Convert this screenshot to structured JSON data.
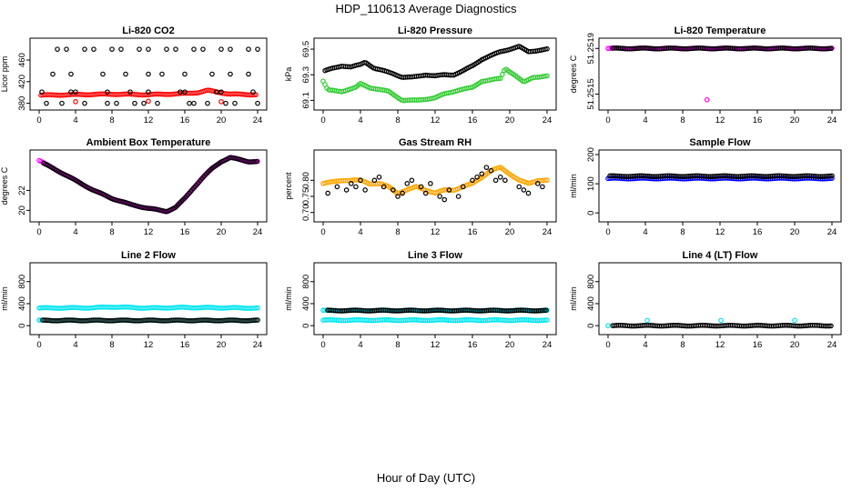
{
  "figure": {
    "title": "HDP_110613  Average Diagnostics",
    "xlabel": "Hour of Day (UTC)"
  },
  "colors": {
    "black": "#000000",
    "red": "#ff0000",
    "green": "#33cc33",
    "magenta": "#ff00ff",
    "orange": "#ffa500",
    "blue": "#0000ff",
    "cyan": "#00e5ee"
  },
  "chart_data": [
    {
      "type": "scatter",
      "title": "Li-820 CO2",
      "ylabel": "Licor ppm",
      "xlim": [
        0,
        24
      ],
      "ylim": [
        376,
        492
      ],
      "xticks": [
        "0",
        "4",
        "8",
        "12",
        "16",
        "20",
        "24"
      ],
      "yticks": [
        {
          "v": 380,
          "label": "380"
        },
        {
          "v": 420,
          "label": "420"
        },
        {
          "v": 460,
          "label": "460"
        }
      ],
      "series": [
        {
          "color": "red",
          "mode": "dense",
          "x": [
            0.2,
            4,
            8,
            12,
            16,
            17.5,
            18.5,
            19.5,
            21,
            23.8
          ],
          "y": [
            395,
            396,
            397,
            396,
            398,
            400,
            404,
            401,
            397,
            396
          ]
        },
        {
          "color": "red",
          "mode": "points",
          "x": [
            4,
            12,
            20
          ],
          "y": [
            383,
            384,
            383
          ]
        },
        {
          "color": "black",
          "mode": "points",
          "x": [
            2,
            3,
            5,
            6,
            8,
            9,
            11,
            12,
            14,
            15,
            17,
            18,
            20,
            21,
            23,
            24,
            1.5,
            3.5,
            7,
            9.5,
            12,
            13.5,
            16,
            19,
            21,
            23,
            0.3,
            3.5,
            4,
            7.5,
            10,
            12,
            15.5,
            16,
            19.5,
            20,
            23.5,
            0.8,
            2.5,
            5,
            7.5,
            8.5,
            10.5,
            11.5,
            13,
            16.5,
            17,
            18.5,
            20.5,
            21.5,
            24
          ],
          "y": [
            480,
            480,
            480,
            480,
            480,
            480,
            480,
            480,
            480,
            480,
            480,
            480,
            480,
            480,
            480,
            480,
            434,
            434,
            434,
            434,
            434,
            434,
            434,
            434,
            434,
            434,
            401,
            401,
            401,
            401,
            401,
            401,
            401,
            401,
            401,
            401,
            401,
            380,
            380,
            380,
            380,
            380,
            380,
            380,
            380,
            380,
            380,
            380,
            380,
            380,
            380
          ]
        }
      ]
    },
    {
      "type": "scatter",
      "title": "Li-820 Pressure",
      "ylabel": "kPa",
      "xlim": [
        0,
        24
      ],
      "ylim": [
        69.06,
        69.55
      ],
      "xticks": [
        "0",
        "4",
        "8",
        "12",
        "16",
        "20",
        "24"
      ],
      "yticks": [
        {
          "v": 69.1,
          "label": "69.1"
        },
        {
          "v": 69.3,
          "label": "69.3"
        },
        {
          "v": 69.5,
          "label": "69.5"
        }
      ],
      "series": [
        {
          "color": "green",
          "mode": "dense",
          "x": [
            0,
            0.5,
            2,
            3.5,
            4,
            5,
            7,
            8.5,
            10,
            12,
            13,
            14.5,
            16,
            17,
            19,
            19.5,
            20.5,
            21.5,
            22.5,
            24
          ],
          "y": [
            69.25,
            69.18,
            69.17,
            69.2,
            69.23,
            69.2,
            69.17,
            69.1,
            69.1,
            69.12,
            69.15,
            69.18,
            69.2,
            69.25,
            69.27,
            69.35,
            69.3,
            69.24,
            69.28,
            69.29
          ]
        },
        {
          "color": "black",
          "mode": "dense",
          "x": [
            0.2,
            1,
            2,
            3,
            4,
            4.5,
            5.5,
            6.5,
            7.5,
            8.5,
            9.5,
            11,
            12,
            13,
            14,
            15,
            16,
            17,
            18,
            19,
            20,
            21,
            22,
            23,
            24
          ],
          "y": [
            69.33,
            69.35,
            69.37,
            69.36,
            69.38,
            69.4,
            69.35,
            69.33,
            69.31,
            69.28,
            69.28,
            69.3,
            69.29,
            69.3,
            69.3,
            69.33,
            69.37,
            69.42,
            69.45,
            69.48,
            69.5,
            69.52,
            69.48,
            69.49,
            69.5
          ]
        }
      ]
    },
    {
      "type": "scatter",
      "title": "Li-820 Temperature",
      "ylabel": "degrees C",
      "xlim": [
        0,
        24
      ],
      "ylim": [
        51.2514,
        51.25195
      ],
      "xticks": [
        "0",
        "4",
        "8",
        "12",
        "16",
        "20",
        "24"
      ],
      "yticks": [
        {
          "v": 51.2515,
          "label": "51.2515"
        },
        {
          "v": 51.2519,
          "label": "51.2519"
        }
      ],
      "series": [
        {
          "color": "magenta",
          "mode": "dense",
          "x": [
            0,
            24
          ],
          "y": [
            51.2519,
            51.2519
          ]
        },
        {
          "color": "black",
          "mode": "dense",
          "x": [
            0.5,
            24
          ],
          "y": [
            51.2519,
            51.2519
          ]
        },
        {
          "color": "magenta",
          "mode": "points",
          "x": [
            10.6
          ],
          "y": [
            51.25145
          ]
        }
      ]
    },
    {
      "type": "scatter",
      "title": "Ambient Box Temperature",
      "ylabel": "degrees C",
      "xlim": [
        0,
        24
      ],
      "ylim": [
        19.3,
        25.6
      ],
      "xticks": [
        "0",
        "4",
        "8",
        "12",
        "16",
        "20",
        "24"
      ],
      "yticks": [
        {
          "v": 20,
          "label": "20"
        },
        {
          "v": 22,
          "label": "22"
        }
      ],
      "series": [
        {
          "color": "magenta",
          "mode": "dense",
          "x": [
            0,
            2,
            4,
            6,
            8,
            10,
            12,
            14,
            15,
            16,
            17,
            18,
            19,
            20,
            21,
            22,
            23,
            24
          ],
          "y": [
            25,
            24,
            23,
            22,
            21.2,
            20.6,
            20.2,
            19.9,
            20.3,
            21.2,
            22.3,
            23.3,
            24.2,
            24.9,
            25.3,
            25.1,
            24.9,
            24.9
          ]
        },
        {
          "color": "black",
          "mode": "dense",
          "x": [
            0.5,
            2,
            4,
            6,
            8,
            10,
            12,
            14,
            15,
            16,
            17,
            18,
            19,
            20,
            21,
            22,
            23,
            24
          ],
          "y": [
            24.7,
            24,
            23,
            22,
            21.2,
            20.6,
            20.2,
            19.9,
            20.3,
            21.2,
            22.3,
            23.3,
            24.2,
            24.9,
            25.3,
            25.1,
            24.9,
            24.9
          ]
        }
      ]
    },
    {
      "type": "scatter",
      "title": "Gas Stream RH",
      "ylabel": "percent",
      "xlim": [
        0,
        24
      ],
      "ylim": [
        0.685,
        0.88
      ],
      "xticks": [
        "0",
        "4",
        "8",
        "12",
        "16",
        "20",
        "24"
      ],
      "yticks": [
        {
          "v": 0.7,
          "label": "0.70"
        },
        {
          "v": 0.75,
          "label": "0.75"
        },
        {
          "v": 0.8,
          "label": "0.80"
        }
      ],
      "series": [
        {
          "color": "orange",
          "mode": "dense",
          "x": [
            0,
            1,
            2,
            3,
            4,
            5,
            6,
            7,
            8,
            9,
            10,
            11,
            12,
            13,
            14,
            15,
            16,
            17,
            18,
            19,
            20,
            21,
            22,
            23,
            24
          ],
          "y": [
            0.79,
            0.795,
            0.8,
            0.8,
            0.8,
            0.79,
            0.79,
            0.78,
            0.76,
            0.77,
            0.78,
            0.77,
            0.76,
            0.77,
            0.77,
            0.78,
            0.79,
            0.81,
            0.83,
            0.84,
            0.82,
            0.8,
            0.79,
            0.8,
            0.8
          ]
        },
        {
          "color": "black",
          "mode": "points",
          "x": [
            0.5,
            1.5,
            2.5,
            3,
            3.5,
            4,
            4.5,
            5.5,
            6,
            6.5,
            7.5,
            8,
            8.5,
            9,
            9.5,
            10.5,
            11,
            11.5,
            12.5,
            13,
            13.5,
            14.5,
            15,
            16,
            16.5,
            17,
            17.5,
            18,
            18.5,
            19,
            19.5,
            21,
            21.5,
            22,
            23,
            23.5
          ],
          "y": [
            0.76,
            0.78,
            0.77,
            0.79,
            0.78,
            0.8,
            0.77,
            0.8,
            0.81,
            0.78,
            0.77,
            0.75,
            0.76,
            0.79,
            0.8,
            0.78,
            0.76,
            0.79,
            0.75,
            0.74,
            0.77,
            0.75,
            0.78,
            0.8,
            0.81,
            0.82,
            0.84,
            0.83,
            0.8,
            0.81,
            0.8,
            0.78,
            0.77,
            0.76,
            0.79,
            0.78
          ]
        }
      ]
    },
    {
      "type": "scatter",
      "title": "Sample Flow",
      "ylabel": "ml/min",
      "xlim": [
        0,
        24
      ],
      "ylim": [
        -15,
        200
      ],
      "xticks": [
        "0",
        "4",
        "8",
        "12",
        "16",
        "20",
        "24"
      ],
      "yticks": [
        {
          "v": 0,
          "label": "0"
        },
        {
          "v": 100,
          "label": "100"
        },
        {
          "v": 200,
          "label": "200"
        }
      ],
      "series": [
        {
          "color": "blue",
          "mode": "dense",
          "x": [
            0,
            24
          ],
          "y": [
            118,
            118
          ]
        },
        {
          "color": "black",
          "mode": "dense",
          "x": [
            0.2,
            24
          ],
          "y": [
            126,
            126
          ]
        }
      ]
    },
    {
      "type": "scatter",
      "title": "Line 2 Flow",
      "ylabel": "ml/min",
      "xlim": [
        0,
        24
      ],
      "ylim": [
        -80,
        1060
      ],
      "xticks": [
        "0",
        "4",
        "8",
        "12",
        "16",
        "20",
        "24"
      ],
      "yticks": [
        {
          "v": 0,
          "label": "0"
        },
        {
          "v": 400,
          "label": "400"
        },
        {
          "v": 800,
          "label": "800"
        }
      ],
      "series": [
        {
          "color": "cyan",
          "mode": "dense",
          "x": [
            0,
            6,
            8,
            12,
            16,
            24
          ],
          "y": [
            320,
            325,
            340,
            320,
            330,
            320
          ]
        },
        {
          "color": "cyan",
          "mode": "dense",
          "x": [
            0,
            24
          ],
          "y": [
            95,
            95
          ]
        },
        {
          "color": "black",
          "mode": "dense",
          "x": [
            0.4,
            24
          ],
          "y": [
            95,
            95
          ]
        }
      ]
    },
    {
      "type": "scatter",
      "title": "Line 3 Flow",
      "ylabel": "ml/min",
      "xlim": [
        0,
        24
      ],
      "ylim": [
        -80,
        1060
      ],
      "xticks": [
        "0",
        "4",
        "8",
        "12",
        "16",
        "20",
        "24"
      ],
      "yticks": [
        {
          "v": 0,
          "label": "0"
        },
        {
          "v": 400,
          "label": "400"
        },
        {
          "v": 800,
          "label": "800"
        }
      ],
      "series": [
        {
          "color": "cyan",
          "mode": "dense",
          "x": [
            0,
            24
          ],
          "y": [
            100,
            100
          ]
        },
        {
          "color": "cyan",
          "mode": "dense",
          "x": [
            0,
            24
          ],
          "y": [
            275,
            275
          ]
        },
        {
          "color": "black",
          "mode": "dense",
          "x": [
            0.5,
            24
          ],
          "y": [
            275,
            275
          ]
        }
      ]
    },
    {
      "type": "scatter",
      "title": "Line 4 (LT) Flow",
      "ylabel": "ml/min",
      "xlim": [
        0,
        24
      ],
      "ylim": [
        -80,
        1060
      ],
      "xticks": [
        "0",
        "4",
        "8",
        "12",
        "16",
        "20",
        "24"
      ],
      "yticks": [
        {
          "v": 0,
          "label": "0"
        },
        {
          "v": 400,
          "label": "400"
        },
        {
          "v": 800,
          "label": "800"
        }
      ],
      "series": [
        {
          "color": "black",
          "mode": "dense",
          "x": [
            0.5,
            24
          ],
          "y": [
            0,
            0
          ]
        },
        {
          "color": "cyan",
          "mode": "points",
          "x": [
            0,
            4.2,
            12.1,
            20
          ],
          "y": [
            0,
            95,
            95,
            95
          ]
        }
      ]
    }
  ]
}
